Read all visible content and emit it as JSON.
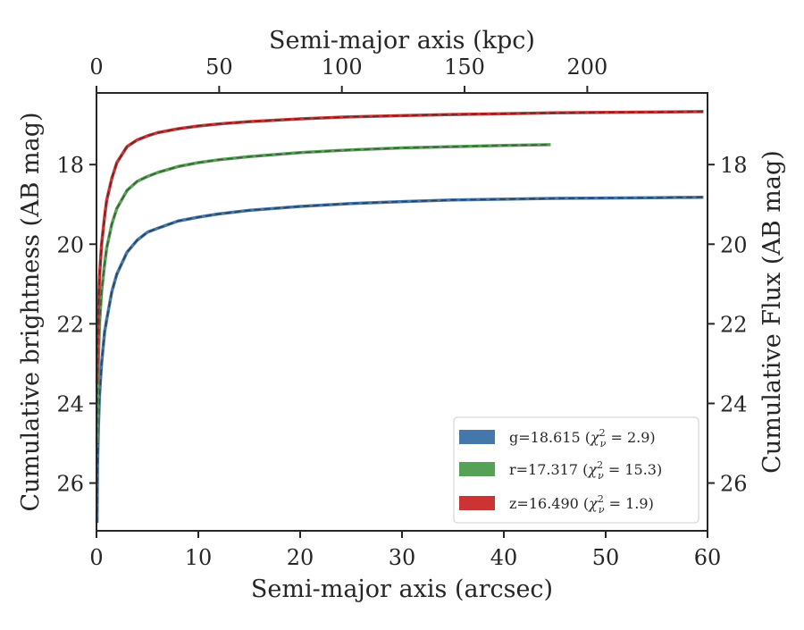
{
  "chart_data": {
    "type": "line",
    "title": "",
    "xlabel": "Semi-major axis (arcsec)",
    "ylabel": "Cumulative brightness (AB mag)",
    "x2label": "Semi-major axis (kpc)",
    "y2label": "Cumulative Flux (AB mag)",
    "xlim": [
      0,
      60
    ],
    "ylim": [
      27.2,
      16.2
    ],
    "y_inverted": true,
    "x2lim": [
      0,
      249
    ],
    "xticks": [
      "0",
      "10",
      "20",
      "30",
      "40",
      "50",
      "60"
    ],
    "yticks": [
      "18",
      "20",
      "22",
      "24",
      "26"
    ],
    "x2ticks": [
      "0",
      "50",
      "100",
      "150",
      "200"
    ],
    "y2ticks": [
      "18",
      "20",
      "22",
      "24",
      "26"
    ],
    "grid": false,
    "legend_position": "lower-right",
    "series": [
      {
        "name": "g=18.615 (χ²ν = 2.9)",
        "legend_label": "g=18.615 ($\\chi^2_\\nu = 2.9$)",
        "color": "#4477aa",
        "model_color": "#2f3f55",
        "x": [
          0.05,
          0.1,
          0.2,
          0.3,
          0.5,
          0.8,
          1.0,
          1.5,
          2.0,
          3.0,
          4.0,
          5.0,
          6.0,
          8.0,
          10.0,
          12.0,
          15.0,
          20.0,
          25.0,
          30.0,
          35.0,
          40.0,
          45.0,
          50.0,
          55.0,
          59.6
        ],
        "y": [
          27.0,
          25.6,
          24.5,
          23.8,
          23.0,
          22.2,
          21.9,
          21.2,
          20.75,
          20.2,
          19.9,
          19.7,
          19.6,
          19.42,
          19.32,
          19.24,
          19.15,
          19.05,
          18.98,
          18.93,
          18.89,
          18.87,
          18.85,
          18.84,
          18.83,
          18.82
        ]
      },
      {
        "name": "r=17.317 (χ²ν = 15.3)",
        "legend_label": "r=17.317 ($\\chi^2_\\nu = 15.3$)",
        "color": "#55a155",
        "model_color": "#3e5a3e",
        "x": [
          0.05,
          0.1,
          0.2,
          0.3,
          0.5,
          0.8,
          1.0,
          1.5,
          2.0,
          3.0,
          4.0,
          5.0,
          6.0,
          8.0,
          10.0,
          12.0,
          15.0,
          20.0,
          25.0,
          30.0,
          35.0,
          40.0,
          44.6
        ],
        "y": [
          25.0,
          23.9,
          22.8,
          22.0,
          21.2,
          20.5,
          20.1,
          19.5,
          19.1,
          18.65,
          18.42,
          18.3,
          18.2,
          18.05,
          17.95,
          17.88,
          17.8,
          17.7,
          17.63,
          17.58,
          17.55,
          17.52,
          17.5
        ]
      },
      {
        "name": "z=16.490 (χ²ν = 1.9)",
        "legend_label": "z=16.490 ($\\chi^2_\\nu = 1.9$)",
        "color": "#cc3333",
        "model_color": "#5a2c2c",
        "x": [
          0.05,
          0.1,
          0.2,
          0.3,
          0.5,
          0.8,
          1.0,
          1.5,
          2.0,
          3.0,
          4.0,
          5.0,
          6.0,
          8.0,
          10.0,
          12.0,
          15.0,
          20.0,
          25.0,
          30.0,
          35.0,
          40.0,
          45.0,
          50.0,
          55.0,
          59.6
        ],
        "y": [
          23.5,
          22.6,
          21.5,
          20.8,
          20.0,
          19.3,
          18.9,
          18.35,
          17.95,
          17.55,
          17.38,
          17.28,
          17.2,
          17.1,
          17.03,
          16.98,
          16.92,
          16.85,
          16.8,
          16.77,
          16.74,
          16.72,
          16.7,
          16.69,
          16.68,
          16.67
        ]
      }
    ]
  }
}
